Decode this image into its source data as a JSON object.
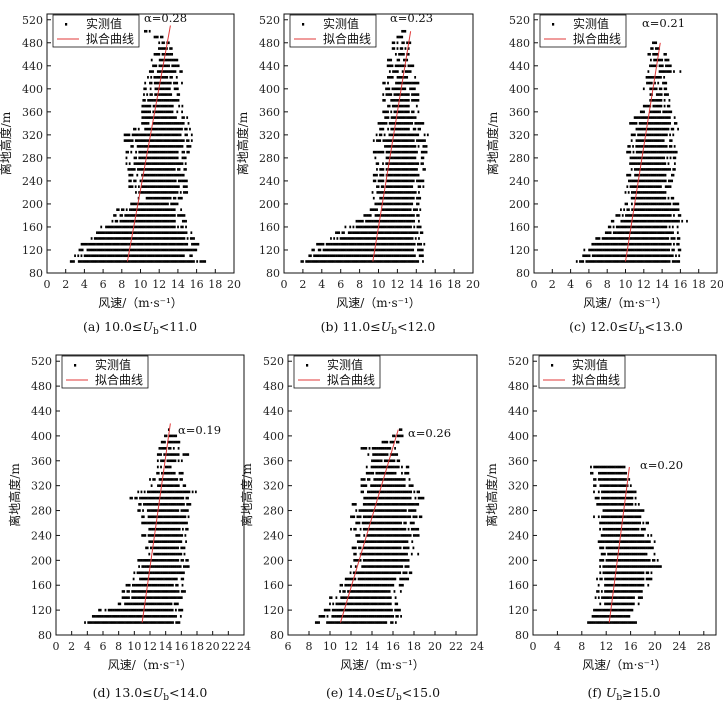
{
  "chart_data": [
    {
      "type": "scatter",
      "caption": "(a) 10.0≤U_b<11.0",
      "caption_parts": [
        "(a) 10.0≤",
        "U",
        "b",
        "<11.0"
      ],
      "xlabel": "风速/（m·s⁻¹）",
      "ylabel": "离地高度/m",
      "xlim": [
        0,
        20
      ],
      "ylim": [
        80,
        530
      ],
      "xticks": [
        0,
        2,
        4,
        6,
        8,
        10,
        12,
        14,
        16,
        18,
        20
      ],
      "yticks": [
        80,
        120,
        160,
        200,
        240,
        280,
        320,
        360,
        400,
        440,
        480,
        520
      ],
      "alpha_label": "α=0.28",
      "legend": [
        "实测值",
        "拟合曲线"
      ],
      "fit_line": [
        [
          8.6,
          100
        ],
        [
          13.2,
          510
        ]
      ],
      "scatter_rows": [
        [
          100,
          2.2,
          17.0
        ],
        [
          110,
          3.0,
          16.0
        ],
        [
          120,
          3.3,
          16.0
        ],
        [
          130,
          3.7,
          16.2
        ],
        [
          140,
          4.6,
          15.8
        ],
        [
          150,
          5.0,
          15.5
        ],
        [
          160,
          5.8,
          15.0
        ],
        [
          170,
          7.0,
          15.0
        ],
        [
          180,
          7.0,
          14.9
        ],
        [
          190,
          7.5,
          14.4
        ],
        [
          200,
          9.0,
          14.3
        ],
        [
          210,
          9.8,
          14.5
        ],
        [
          220,
          9.0,
          15.0
        ],
        [
          230,
          8.8,
          15.0
        ],
        [
          240,
          8.8,
          15.0
        ],
        [
          250,
          8.8,
          14.9
        ],
        [
          260,
          8.7,
          14.9
        ],
        [
          270,
          8.5,
          15.0
        ],
        [
          280,
          8.5,
          15.2
        ],
        [
          290,
          8.5,
          15.3
        ],
        [
          300,
          8.5,
          15.4
        ],
        [
          310,
          8.3,
          15.5
        ],
        [
          320,
          8.3,
          15.6
        ],
        [
          330,
          9.3,
          15.5
        ],
        [
          340,
          10.0,
          15.3
        ],
        [
          350,
          10.2,
          15.0
        ],
        [
          360,
          10.0,
          14.5
        ],
        [
          370,
          10.2,
          14.5
        ],
        [
          380,
          10.3,
          14.3
        ],
        [
          390,
          10.2,
          14.3
        ],
        [
          400,
          10.4,
          14.0
        ],
        [
          410,
          10.5,
          14.5
        ],
        [
          420,
          10.8,
          14.0
        ],
        [
          430,
          11.0,
          14.5
        ],
        [
          440,
          11.0,
          14.2
        ],
        [
          450,
          11.2,
          14.0
        ],
        [
          460,
          11.5,
          13.8
        ],
        [
          470,
          11.8,
          13.5
        ],
        [
          480,
          12.0,
          13.3
        ],
        [
          490,
          11.5,
          12.5
        ],
        [
          500,
          10.3,
          11.0
        ]
      ]
    },
    {
      "type": "scatter",
      "caption": "(b) 11.0≤U_b<12.0",
      "caption_parts": [
        "(b) 11.0≤",
        "U",
        "b",
        "<12.0"
      ],
      "xlabel": "风速/（m·s⁻¹）",
      "ylabel": "离地高度/m",
      "xlim": [
        0,
        20
      ],
      "ylim": [
        80,
        530
      ],
      "xticks": [
        0,
        2,
        4,
        6,
        8,
        10,
        12,
        14,
        16,
        18,
        20
      ],
      "yticks": [
        80,
        120,
        160,
        200,
        240,
        280,
        320,
        360,
        400,
        440,
        480,
        520
      ],
      "alpha_label": "α=0.23",
      "legend": [
        "实测值",
        "拟合曲线"
      ],
      "fit_line": [
        [
          9.4,
          100
        ],
        [
          13.4,
          500
        ]
      ],
      "scatter_rows": [
        [
          100,
          1.5,
          15.5
        ],
        [
          110,
          2.0,
          15.0
        ],
        [
          120,
          3.0,
          15.0
        ],
        [
          130,
          3.5,
          15.0
        ],
        [
          140,
          4.8,
          14.8
        ],
        [
          150,
          5.5,
          14.8
        ],
        [
          160,
          6.5,
          14.5
        ],
        [
          170,
          7.5,
          14.5
        ],
        [
          180,
          8.5,
          14.5
        ],
        [
          190,
          9.0,
          14.5
        ],
        [
          200,
          9.5,
          14.5
        ],
        [
          210,
          9.5,
          14.8
        ],
        [
          220,
          9.2,
          15.0
        ],
        [
          230,
          9.5,
          14.8
        ],
        [
          240,
          9.5,
          14.8
        ],
        [
          250,
          9.5,
          14.9
        ],
        [
          260,
          9.5,
          15.0
        ],
        [
          270,
          9.8,
          15.0
        ],
        [
          280,
          9.5,
          15.0
        ],
        [
          290,
          9.5,
          15.2
        ],
        [
          300,
          9.5,
          15.2
        ],
        [
          310,
          9.5,
          15.0
        ],
        [
          320,
          9.8,
          15.3
        ],
        [
          330,
          10.0,
          14.5
        ],
        [
          340,
          10.0,
          14.8
        ],
        [
          350,
          10.2,
          14.5
        ],
        [
          360,
          10.5,
          14.5
        ],
        [
          370,
          10.5,
          14.2
        ],
        [
          380,
          10.5,
          14.5
        ],
        [
          390,
          10.5,
          14.3
        ],
        [
          400,
          10.8,
          14.0
        ],
        [
          410,
          10.5,
          14.3
        ],
        [
          420,
          11.0,
          14.0
        ],
        [
          430,
          11.2,
          13.8
        ],
        [
          440,
          10.8,
          13.7
        ],
        [
          450,
          11.0,
          13.5
        ],
        [
          460,
          11.5,
          13.3
        ],
        [
          470,
          11.5,
          13.2
        ],
        [
          480,
          11.5,
          13.5
        ],
        [
          490,
          12.0,
          13.0
        ],
        [
          500,
          12.5,
          13.0
        ]
      ]
    },
    {
      "type": "scatter",
      "caption": "(c) 12.0≤U_b<13.0",
      "caption_parts": [
        "(c) 12.0≤",
        "U",
        "b",
        "<13.0"
      ],
      "xlabel": "风速/（m·s⁻¹）",
      "ylabel": "离地高度/m",
      "xlim": [
        0,
        20
      ],
      "ylim": [
        80,
        530
      ],
      "xticks": [
        0,
        2,
        4,
        6,
        8,
        10,
        12,
        14,
        16,
        18,
        20
      ],
      "yticks": [
        80,
        120,
        160,
        200,
        240,
        280,
        320,
        360,
        400,
        440,
        480,
        520
      ],
      "alpha_label": "α=0.21",
      "legend": [
        "实测值",
        "拟合曲线"
      ],
      "fit_line": [
        [
          10.0,
          100
        ],
        [
          13.8,
          480
        ]
      ],
      "scatter_rows": [
        [
          100,
          4.5,
          16.0
        ],
        [
          110,
          5.2,
          16.2
        ],
        [
          120,
          5.5,
          16.0
        ],
        [
          130,
          6.2,
          16.0
        ],
        [
          140,
          6.8,
          16.0
        ],
        [
          150,
          7.5,
          15.8
        ],
        [
          160,
          8.0,
          15.8
        ],
        [
          170,
          8.5,
          17.0
        ],
        [
          180,
          9.0,
          16.0
        ],
        [
          190,
          9.5,
          15.8
        ],
        [
          200,
          10.0,
          15.8
        ],
        [
          210,
          10.5,
          15.5
        ],
        [
          220,
          10.0,
          15.0
        ],
        [
          230,
          10.2,
          15.2
        ],
        [
          240,
          10.2,
          15.2
        ],
        [
          250,
          10.0,
          15.3
        ],
        [
          260,
          10.5,
          15.5
        ],
        [
          270,
          10.5,
          15.5
        ],
        [
          280,
          10.2,
          15.5
        ],
        [
          290,
          10.0,
          15.8
        ],
        [
          300,
          10.3,
          15.5
        ],
        [
          310,
          10.5,
          15.5
        ],
        [
          320,
          10.5,
          15.5
        ],
        [
          330,
          10.5,
          15.8
        ],
        [
          340,
          10.5,
          15.8
        ],
        [
          350,
          11.0,
          15.5
        ],
        [
          360,
          11.5,
          15.0
        ],
        [
          370,
          12.0,
          15.0
        ],
        [
          380,
          12.0,
          15.0
        ],
        [
          390,
          12.2,
          14.8
        ],
        [
          400,
          12.0,
          14.5
        ],
        [
          410,
          12.0,
          14.5
        ],
        [
          420,
          12.3,
          14.5
        ],
        [
          430,
          12.5,
          16.0
        ],
        [
          440,
          12.5,
          15.0
        ],
        [
          450,
          12.6,
          14.8
        ],
        [
          460,
          12.5,
          14.5
        ],
        [
          470,
          12.8,
          14.0
        ],
        [
          480,
          13.0,
          14.0
        ]
      ]
    },
    {
      "type": "scatter",
      "caption": "(d) 13.0≤U_b<14.0",
      "caption_parts": [
        "(d) 13.0≤",
        "U",
        "b",
        "<14.0"
      ],
      "xlabel": "风速/（m·s⁻¹）",
      "ylabel": "离地高度/m",
      "xlim": [
        0,
        24
      ],
      "ylim": [
        80,
        530
      ],
      "xticks": [
        0,
        2,
        4,
        6,
        8,
        10,
        12,
        14,
        16,
        18,
        20,
        22,
        24
      ],
      "yticks": [
        80,
        120,
        160,
        200,
        240,
        280,
        320,
        360,
        400,
        440,
        480,
        520
      ],
      "alpha_label": "α=0.19",
      "legend": [
        "实测值",
        "拟合曲线"
      ],
      "fit_line": [
        [
          11.0,
          100
        ],
        [
          14.6,
          420
        ]
      ],
      "scatter_rows": [
        [
          100,
          3.5,
          16.0
        ],
        [
          110,
          4.5,
          16.0
        ],
        [
          120,
          5.5,
          16.3
        ],
        [
          130,
          8.0,
          16.0
        ],
        [
          140,
          8.5,
          16.2
        ],
        [
          150,
          8.5,
          16.5
        ],
        [
          160,
          9.0,
          16.2
        ],
        [
          170,
          9.5,
          16.5
        ],
        [
          180,
          10.0,
          16.5
        ],
        [
          190,
          10.2,
          17.0
        ],
        [
          200,
          10.5,
          17.0
        ],
        [
          210,
          11.5,
          16.5
        ],
        [
          220,
          11.5,
          16.5
        ],
        [
          230,
          11.5,
          16.8
        ],
        [
          240,
          11.0,
          17.0
        ],
        [
          250,
          11.5,
          17.0
        ],
        [
          260,
          11.0,
          16.8
        ],
        [
          270,
          11.0,
          17.0
        ],
        [
          280,
          10.5,
          17.0
        ],
        [
          290,
          10.0,
          17.5
        ],
        [
          300,
          9.5,
          17.0
        ],
        [
          310,
          10.5,
          18.0
        ],
        [
          320,
          12.0,
          16.5
        ],
        [
          330,
          12.0,
          16.5
        ],
        [
          340,
          12.5,
          16.2
        ],
        [
          350,
          13.0,
          16.0
        ],
        [
          360,
          13.0,
          16.5
        ],
        [
          370,
          13.0,
          17.0
        ],
        [
          380,
          13.2,
          15.8
        ],
        [
          390,
          13.5,
          16.0
        ],
        [
          400,
          13.5,
          15.5
        ],
        [
          410,
          14.0,
          14.8
        ],
        [
          420,
          14.0,
          14.2
        ]
      ]
    },
    {
      "type": "scatter",
      "caption": "(e) 14.0≤U_b<15.0",
      "caption_parts": [
        "(e) 14.0≤",
        "U",
        "b",
        "<15.0"
      ],
      "xlabel": "风速/（m·s⁻¹）",
      "ylabel": "离地高度/m",
      "xlim": [
        6,
        24
      ],
      "ylim": [
        80,
        530
      ],
      "xticks": [
        6,
        8,
        10,
        12,
        14,
        16,
        18,
        20,
        22,
        24
      ],
      "yticks": [
        80,
        120,
        160,
        200,
        240,
        280,
        320,
        360,
        400,
        440,
        480,
        520
      ],
      "alpha_label": "α=0.26",
      "legend": [
        "实测值",
        "拟合曲线"
      ],
      "fit_line": [
        [
          11.0,
          100
        ],
        [
          16.5,
          410
        ]
      ],
      "scatter_rows": [
        [
          100,
          8.5,
          16.5
        ],
        [
          110,
          9.0,
          17.0
        ],
        [
          120,
          9.5,
          16.8
        ],
        [
          130,
          10.0,
          17.0
        ],
        [
          140,
          10.0,
          17.0
        ],
        [
          150,
          10.5,
          17.0
        ],
        [
          160,
          11.0,
          17.0
        ],
        [
          170,
          11.5,
          17.5
        ],
        [
          180,
          11.5,
          18.0
        ],
        [
          190,
          12.0,
          17.5
        ],
        [
          200,
          12.0,
          17.5
        ],
        [
          210,
          12.0,
          18.5
        ],
        [
          220,
          12.0,
          18.0
        ],
        [
          230,
          12.5,
          18.0
        ],
        [
          240,
          12.5,
          18.5
        ],
        [
          250,
          12.0,
          18.5
        ],
        [
          260,
          12.5,
          18.0
        ],
        [
          270,
          12.0,
          18.8
        ],
        [
          280,
          12.5,
          18.5
        ],
        [
          290,
          12.0,
          18.8
        ],
        [
          300,
          12.5,
          19.0
        ],
        [
          310,
          13.0,
          18.5
        ],
        [
          320,
          13.0,
          18.0
        ],
        [
          330,
          13.0,
          18.0
        ],
        [
          340,
          13.5,
          17.5
        ],
        [
          350,
          13.5,
          17.5
        ],
        [
          360,
          14.0,
          17.0
        ],
        [
          370,
          13.5,
          16.5
        ],
        [
          380,
          13.0,
          16.5
        ],
        [
          390,
          15.0,
          16.8
        ],
        [
          400,
          16.0,
          17.0
        ],
        [
          410,
          16.5,
          17.0
        ]
      ]
    },
    {
      "type": "scatter",
      "caption": "(f) U_b≥15.0",
      "caption_parts": [
        "(f) ",
        "U",
        "b",
        "≥15.0"
      ],
      "xlabel": "风速/（m·s⁻¹）",
      "ylabel": "离地高度/m",
      "xlim": [
        0,
        30
      ],
      "ylim": [
        80,
        530
      ],
      "xticks": [
        0,
        4,
        8,
        12,
        16,
        20,
        24,
        28
      ],
      "yticks": [
        80,
        120,
        160,
        200,
        240,
        280,
        320,
        360,
        400,
        440,
        480,
        520
      ],
      "alpha_label": "α=0.20",
      "legend": [
        "实测值",
        "拟合曲线"
      ],
      "fit_line": [
        [
          12.5,
          100
        ],
        [
          15.8,
          350
        ]
      ],
      "scatter_rows": [
        [
          100,
          8.5,
          17.0
        ],
        [
          110,
          9.5,
          16.5
        ],
        [
          120,
          10.0,
          17.0
        ],
        [
          130,
          10.5,
          17.5
        ],
        [
          140,
          10.0,
          18.0
        ],
        [
          150,
          10.5,
          18.5
        ],
        [
          160,
          10.5,
          19.0
        ],
        [
          170,
          10.5,
          19.5
        ],
        [
          180,
          10.5,
          19.5
        ],
        [
          190,
          11.0,
          22.0
        ],
        [
          200,
          11.0,
          20.5
        ],
        [
          210,
          11.0,
          20.0
        ],
        [
          220,
          11.0,
          21.0
        ],
        [
          230,
          10.5,
          20.0
        ],
        [
          240,
          11.0,
          19.5
        ],
        [
          250,
          11.0,
          18.5
        ],
        [
          260,
          11.0,
          19.0
        ],
        [
          270,
          10.0,
          18.0
        ],
        [
          280,
          10.5,
          18.5
        ],
        [
          290,
          10.0,
          17.5
        ],
        [
          300,
          10.0,
          17.0
        ],
        [
          310,
          10.0,
          17.0
        ],
        [
          320,
          10.0,
          16.5
        ],
        [
          330,
          10.0,
          16.0
        ],
        [
          340,
          9.5,
          15.5
        ],
        [
          350,
          9.5,
          15.5
        ]
      ]
    }
  ]
}
